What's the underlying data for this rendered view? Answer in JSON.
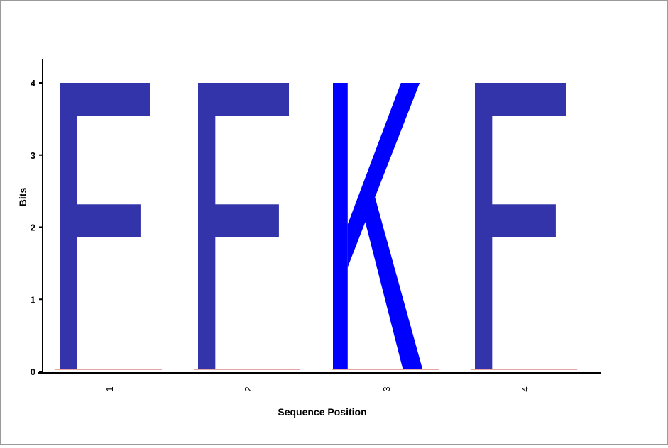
{
  "chart_data": {
    "type": "sequence-logo",
    "xlabel": "Sequence Position",
    "ylabel": "Bits",
    "ylim": [
      0,
      4
    ],
    "yticks": [
      "0",
      "1",
      "2",
      "3",
      "4"
    ],
    "positions": [
      {
        "label": "1",
        "letter": "F",
        "bits": 3.95,
        "color": "#3333aa"
      },
      {
        "label": "2",
        "letter": "F",
        "bits": 3.95,
        "color": "#3333aa"
      },
      {
        "label": "3",
        "letter": "K",
        "bits": 3.95,
        "color": "#0000ff"
      },
      {
        "label": "4",
        "letter": "F",
        "bits": 3.95,
        "color": "#3333aa"
      }
    ],
    "grid": false,
    "legend": "none"
  }
}
